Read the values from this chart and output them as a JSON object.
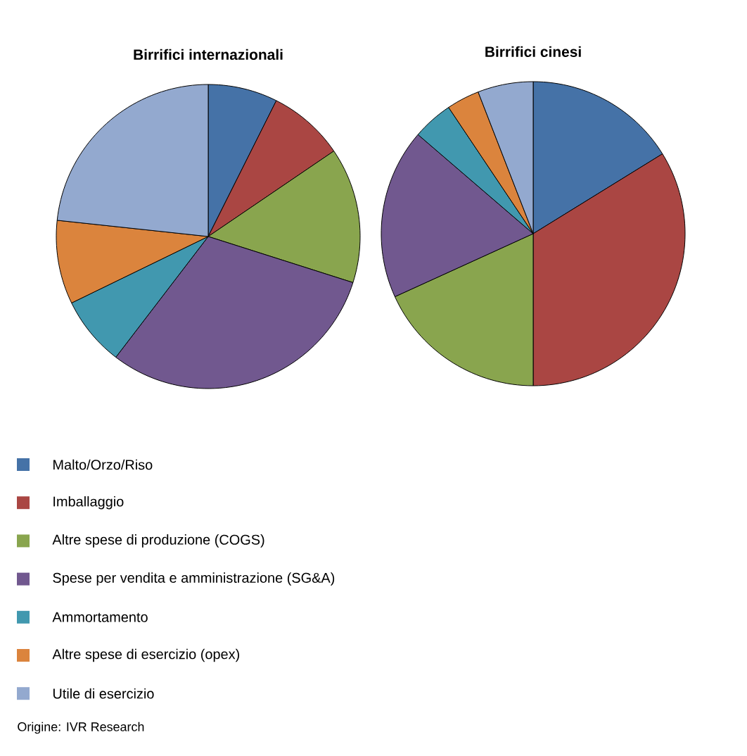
{
  "chart_data": [
    {
      "type": "pie",
      "title": "Birrifici internazionali",
      "categories": [
        "Malto/Orzo/Riso",
        "Imballaggio",
        "Altre spese di produzione (COGS)",
        "Spese per vendita e amministrazione (SG&A)",
        "Ammortamento",
        "Altre spese di esercizio (opex)",
        "Utile di esercizio"
      ],
      "values": [
        7.4,
        8.1,
        14.4,
        30.5,
        7.4,
        8.9,
        23.3
      ],
      "colors": [
        "#4572a7",
        "#aa4643",
        "#89a54e",
        "#71588f",
        "#4198af",
        "#db843d",
        "#93a9cf"
      ],
      "legend": "bottom",
      "annotations": [
        "Origine: IVR Research"
      ]
    },
    {
      "type": "pie",
      "title": "Birrifici cinesi",
      "categories": [
        null,
        null,
        null,
        null,
        null,
        null,
        null
      ],
      "values": [
        16.2,
        33.8,
        18.2,
        18.1,
        4.3,
        3.5,
        5.9
      ],
      "colors": [
        "#4572a7",
        "#aa4643",
        "#89a54e",
        "#71588f",
        "#4198af",
        "#db843d",
        "#93a9cf"
      ]
    }
  ]
}
